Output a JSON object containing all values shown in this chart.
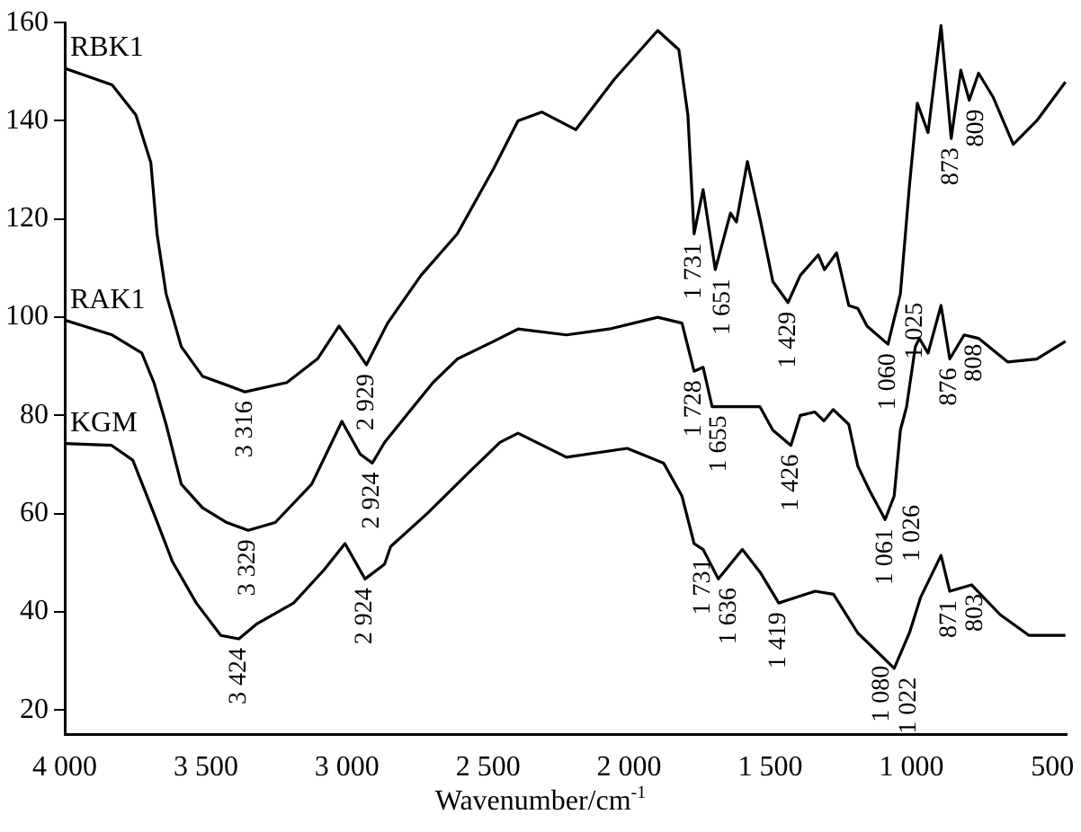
{
  "chart_data": {
    "type": "line",
    "xlabel": "Wavenumber/cm$^{-1}$",
    "xlim": [
      4000,
      450
    ],
    "ylim": [
      15,
      160
    ],
    "xticks": [
      {
        "value": 4000,
        "label": "4 000"
      },
      {
        "value": 3500,
        "label": "3 500"
      },
      {
        "value": 3000,
        "label": "3 000"
      },
      {
        "value": 2500,
        "label": "2 500"
      },
      {
        "value": 2000,
        "label": "2 000"
      },
      {
        "value": 1500,
        "label": "1 500"
      },
      {
        "value": 1000,
        "label": "1 000"
      },
      500
    ],
    "yticks": [
      20,
      40,
      60,
      80,
      100,
      120,
      140,
      160
    ],
    "legend": false,
    "grid": false,
    "marker": "none",
    "line_style": "solid",
    "series": [
      {
        "name": "RBK1",
        "color": "#000000",
        "x": [
          4000,
          3832,
          3748,
          3695,
          3673,
          3641,
          3587,
          3512,
          3361,
          3213,
          3103,
          3028,
          2974,
          2931,
          2856,
          2738,
          2609,
          2480,
          2394,
          2310,
          2189,
          2052,
          1899,
          1824,
          1792,
          1770,
          1738,
          1695,
          1641,
          1620,
          1581,
          1534,
          1491,
          1437,
          1394,
          1330,
          1308,
          1265,
          1222,
          1190,
          1157,
          1083,
          1039,
          1007,
          979,
          941,
          895,
          859,
          825,
          795,
          762,
          710,
          639,
          556,
          454
        ],
        "values": [
          150.7,
          147.3,
          141.2,
          131.5,
          117,
          104.8,
          94,
          88,
          84.8,
          86.7,
          91.6,
          98.2,
          94,
          90.3,
          98.8,
          108.5,
          117,
          130.3,
          140,
          141.8,
          138.2,
          148.5,
          158.4,
          154.5,
          141.2,
          117,
          126,
          109.7,
          121.2,
          119.4,
          131.7,
          119.4,
          107.3,
          103,
          108.5,
          112.7,
          109.7,
          113.1,
          102.4,
          101.8,
          98.2,
          94.5,
          104.8,
          126.7,
          143.6,
          137.6,
          159.4,
          136.4,
          150.3,
          144.2,
          149.7,
          144.8,
          135.2,
          140,
          147.9
        ]
      },
      {
        "name": "RAK1",
        "color": "#000000",
        "x": [
          4000,
          3832,
          3727,
          3684,
          3641,
          3587,
          3512,
          3426,
          3350,
          3254,
          3125,
          3018,
          2953,
          2910,
          2867,
          2781,
          2695,
          2609,
          2480,
          2394,
          2222,
          2071,
          1899,
          1813,
          1770,
          1738,
          1706,
          1537,
          1491,
          1427,
          1394,
          1342,
          1310,
          1277,
          1222,
          1190,
          1149,
          1093,
          1061,
          1039,
          1017,
          986,
          972,
          941,
          895,
          864,
          813,
          762,
          659,
          556,
          454
        ],
        "values": [
          99.4,
          96.4,
          92.7,
          86.7,
          78.2,
          66,
          61.2,
          58.2,
          56.6,
          58.2,
          66,
          78.8,
          72.1,
          70.3,
          74.5,
          80.6,
          86.7,
          91.5,
          95.1,
          97.6,
          96.4,
          97.6,
          100,
          98.8,
          89,
          89.8,
          81.8,
          81.8,
          77,
          73.9,
          80,
          80.7,
          78.9,
          81.2,
          78.2,
          69.7,
          64.8,
          58.8,
          63.6,
          77,
          81.8,
          94,
          95.7,
          92.7,
          102.4,
          91.5,
          96.4,
          95.7,
          90.9,
          91.5,
          95.1
        ]
      },
      {
        "name": "KGM",
        "color": "#000000",
        "x": [
          4000,
          3834,
          3759,
          3684,
          3619,
          3534,
          3447,
          3383,
          3318,
          3189,
          3082,
          3007,
          2936,
          2867,
          2845,
          2716,
          2566,
          2458,
          2394,
          2222,
          2007,
          1878,
          1813,
          1770,
          1738,
          1684,
          1599,
          1534,
          1470,
          1405,
          1341,
          1276,
          1190,
          1104,
          1061,
          1007,
          967,
          895,
          864,
          787,
          685,
          583,
          454
        ],
        "values": [
          74.3,
          73.9,
          70.9,
          60,
          50.3,
          41.8,
          35.2,
          34.5,
          37.6,
          41.8,
          48.5,
          53.9,
          46.7,
          49.7,
          53.3,
          60,
          68.5,
          74.5,
          76.4,
          71.5,
          73.3,
          70.3,
          63.6,
          53.9,
          52.7,
          46.7,
          52.7,
          47.9,
          41.8,
          43,
          44.2,
          43.6,
          35.7,
          30.9,
          28.5,
          35.7,
          43,
          51.5,
          44.2,
          45.5,
          39.4,
          35.2,
          35.2
        ]
      }
    ],
    "annotations": [
      {
        "text": "3 316",
        "x": 3361,
        "y": 84.8
      },
      {
        "text": "2 929",
        "x": 2931,
        "y": 90.3
      },
      {
        "text": "1 731",
        "x": 1770,
        "y": 117
      },
      {
        "text": "1 651",
        "x": 1695,
        "y": 109.7
      },
      {
        "text": "1 429",
        "x": 1437,
        "y": 103
      },
      {
        "text": "1 060",
        "x": 1083,
        "y": 94.5
      },
      {
        "text": "1 025",
        "x": 1039,
        "y": 104.8
      },
      {
        "text": "873",
        "x": 859,
        "y": 136.4
      },
      {
        "text": "809",
        "x": 795,
        "y": 144.2
      },
      {
        "text": "3 329",
        "x": 3350,
        "y": 56.6
      },
      {
        "text": "2 924",
        "x": 2910,
        "y": 70.3
      },
      {
        "text": "1 728",
        "x": 1770,
        "y": 89
      },
      {
        "text": "1 655",
        "x": 1706,
        "y": 81.8
      },
      {
        "text": "1 426",
        "x": 1427,
        "y": 73.9
      },
      {
        "text": "1 061",
        "x": 1093,
        "y": 58.8
      },
      {
        "text": "1 026",
        "x": 1061,
        "y": 63.6
      },
      {
        "text": "876",
        "x": 864,
        "y": 91.5
      },
      {
        "text": "808",
        "x": 813,
        "y": 96.4
      },
      {
        "text": "3 424",
        "x": 3383,
        "y": 34.5
      },
      {
        "text": "2 924",
        "x": 2936,
        "y": 46.7
      },
      {
        "text": "1 731",
        "x": 1738,
        "y": 52.7
      },
      {
        "text": "1 636",
        "x": 1684,
        "y": 46.7
      },
      {
        "text": "1 419",
        "x": 1470,
        "y": 41.8
      },
      {
        "text": "1 080",
        "x": 1104,
        "y": 30.9
      },
      {
        "text": "1 022",
        "x": 1061,
        "y": 28.5
      },
      {
        "text": "871",
        "x": 864,
        "y": 44.2
      },
      {
        "text": "803",
        "x": 787,
        "y": 45.5
      }
    ]
  }
}
